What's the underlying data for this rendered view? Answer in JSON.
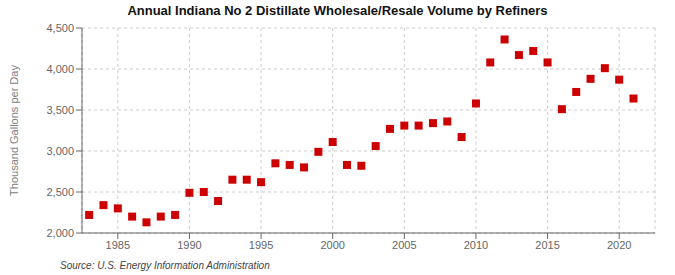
{
  "chart_data": {
    "type": "scatter",
    "title": "Annual Indiana No 2 Distillate Wholesale/Resale Volume by Refiners",
    "ylabel": "Thousand Gallons per Day",
    "annotations": [
      "Source: U.S. Energy Information Administration"
    ],
    "x": [
      1983,
      1984,
      1985,
      1986,
      1987,
      1988,
      1989,
      1990,
      1991,
      1992,
      1993,
      1994,
      1995,
      1996,
      1997,
      1998,
      1999,
      2000,
      2001,
      2002,
      2003,
      2004,
      2005,
      2006,
      2007,
      2008,
      2009,
      2010,
      2011,
      2012,
      2013,
      2014,
      2015,
      2016,
      2017,
      2018,
      2019,
      2020,
      2021
    ],
    "values": [
      2220,
      2340,
      2300,
      2200,
      2130,
      2200,
      2220,
      2490,
      2500,
      2390,
      2650,
      2650,
      2620,
      2850,
      2830,
      2800,
      2990,
      3110,
      2830,
      2820,
      3060,
      3270,
      3310,
      3310,
      3340,
      3360,
      3170,
      3580,
      4080,
      4360,
      4170,
      4220,
      4080,
      3510,
      3720,
      3880,
      4010,
      3870,
      3640
    ],
    "color": "#cc0000",
    "marker": "square",
    "xlim": [
      1982.5,
      2022.5
    ],
    "ylim": [
      2000,
      4500
    ],
    "xticks": [
      1985,
      1990,
      1995,
      2000,
      2005,
      2010,
      2015,
      2020
    ],
    "yticks": [
      {
        "value": 2000,
        "label": "2,000"
      },
      {
        "value": 2500,
        "label": "2,500"
      },
      {
        "value": 3000,
        "label": "3,000"
      },
      {
        "value": 3500,
        "label": "3,500"
      },
      {
        "value": 4000,
        "label": "4,000"
      },
      {
        "value": 4500,
        "label": "4,500"
      }
    ],
    "grid": true
  }
}
